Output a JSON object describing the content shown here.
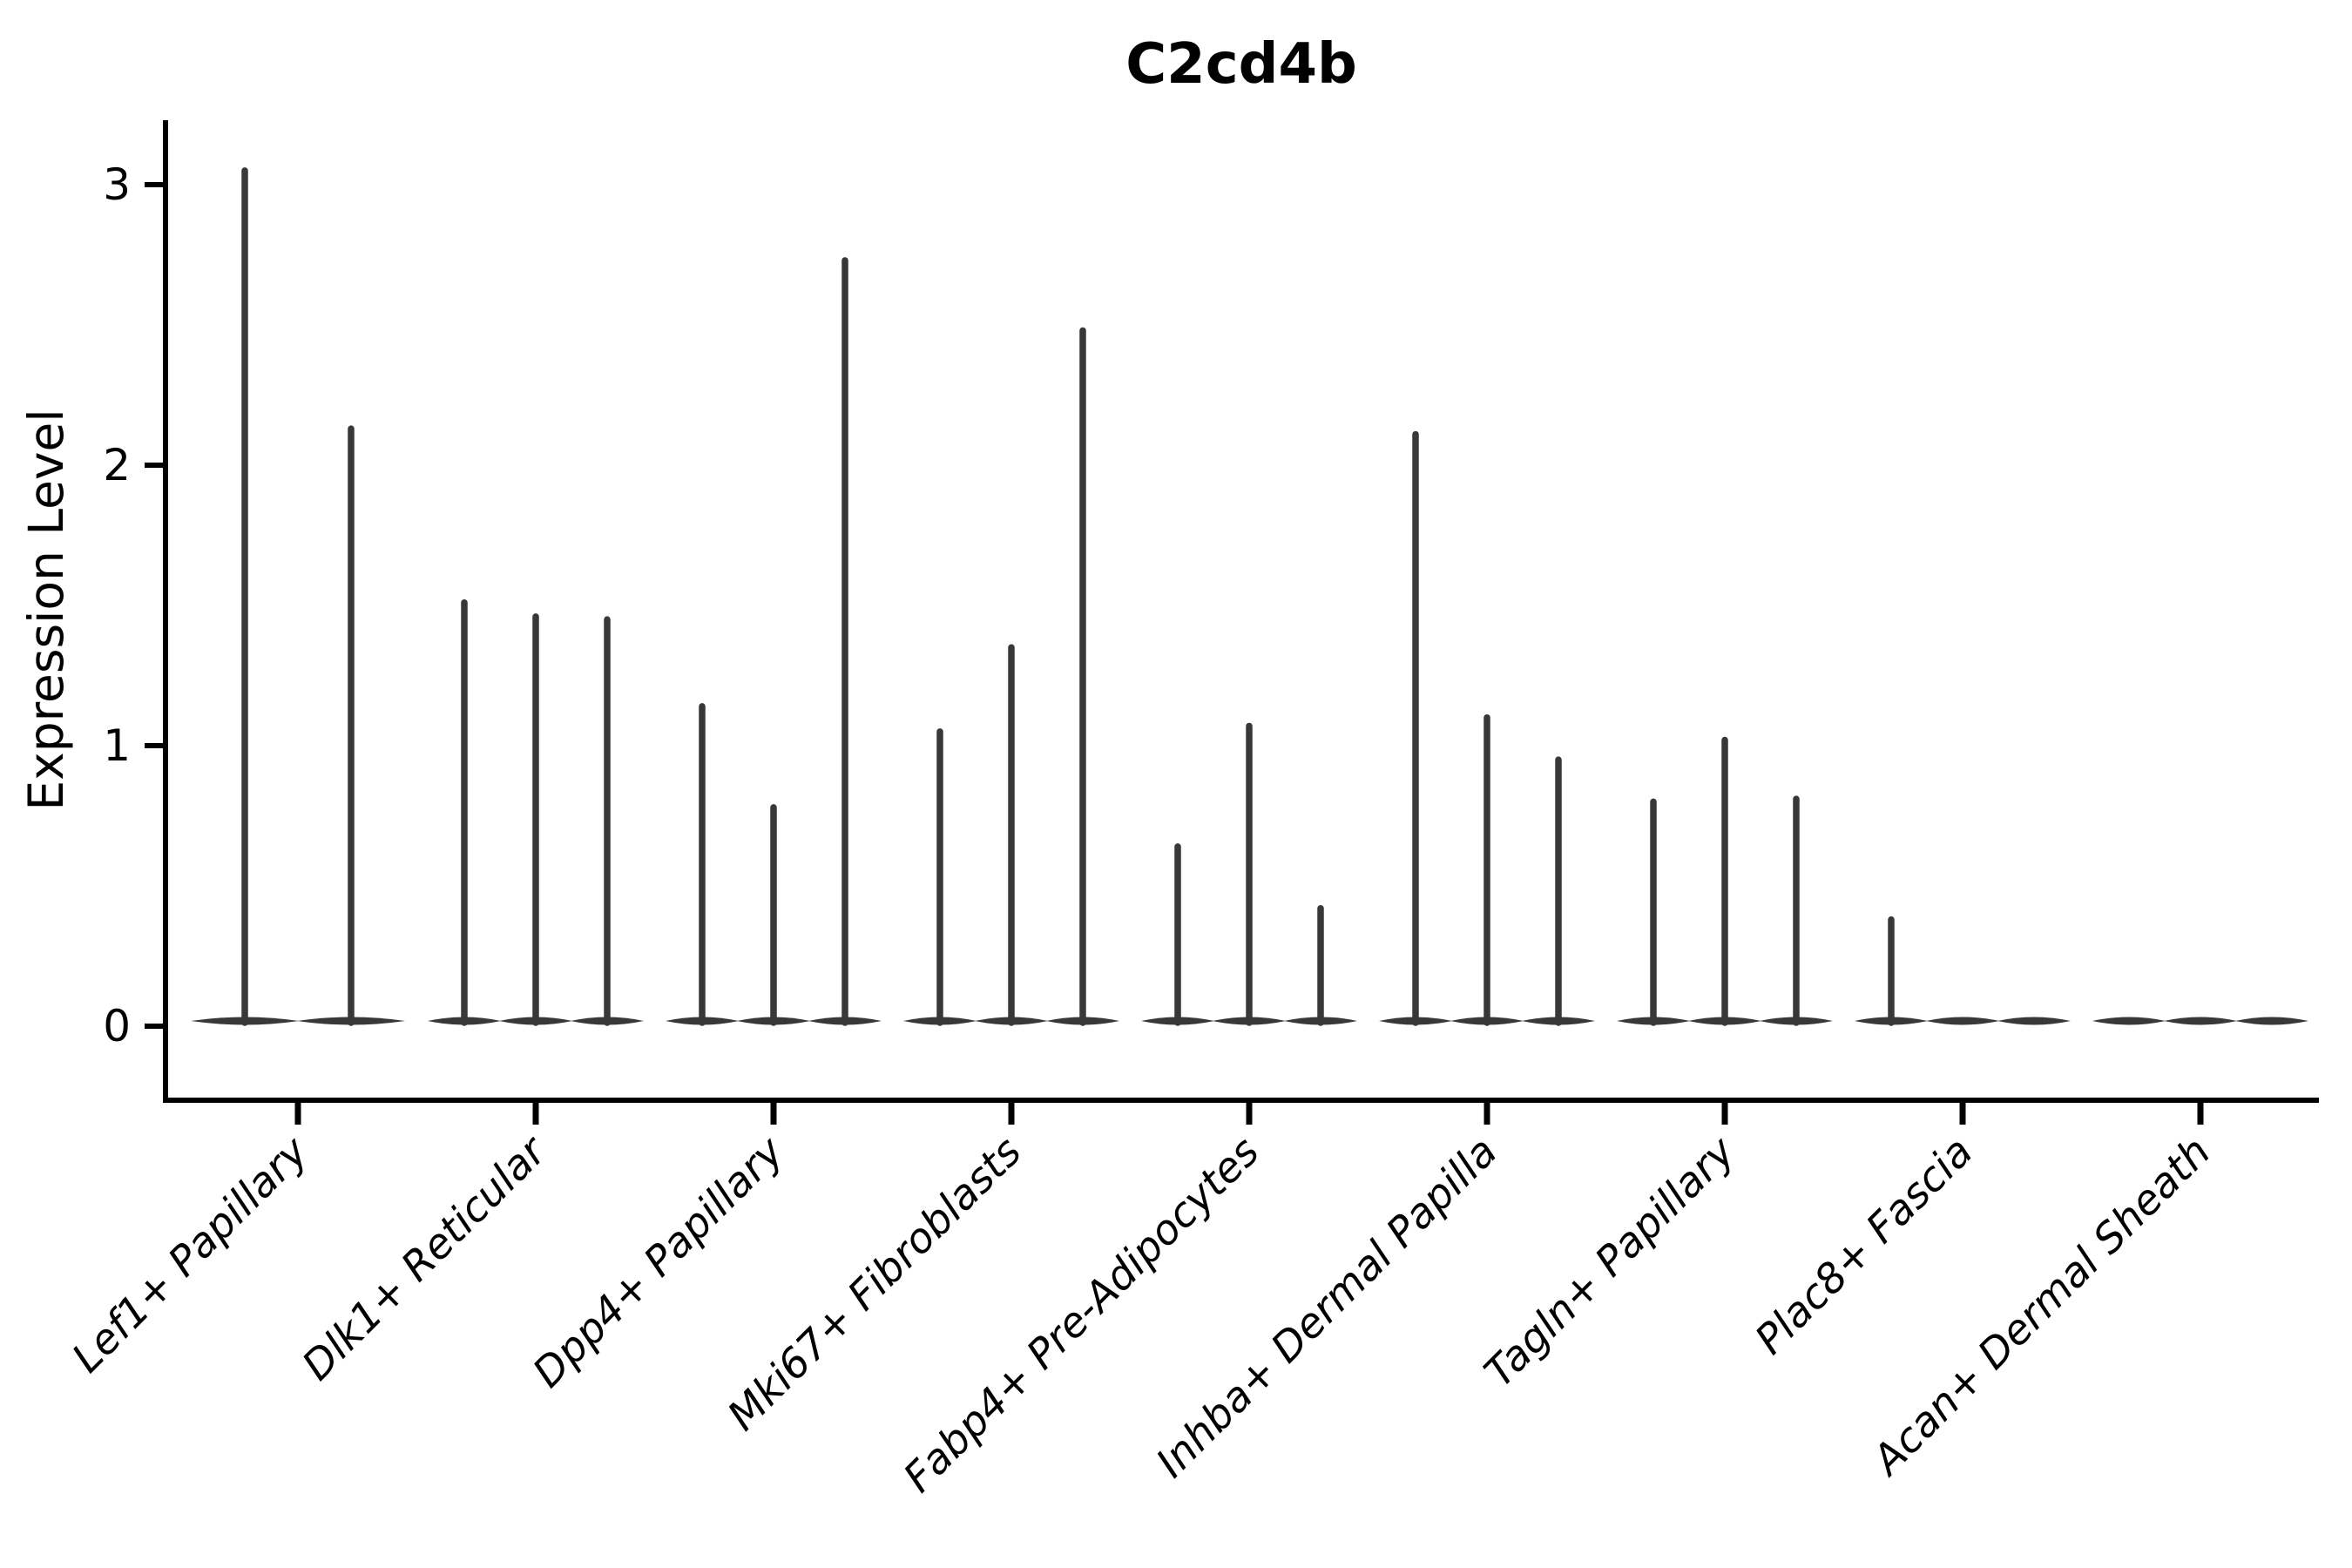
{
  "chart_data": {
    "type": "violin",
    "title": "C2cd4b",
    "xlabel": "",
    "ylabel": "Expression Level",
    "ylim": [
      0,
      3.2
    ],
    "yticks": [
      0,
      1,
      2,
      3
    ],
    "grid": false,
    "legend": "none",
    "violin_fill_color": "#383838",
    "axis_color": "#000000",
    "description": "Violin plot of C2cd4b expression level per fibroblast cell-type cluster; each cluster shows 2-3 narrow violins (spike = maximum expression tail, flat base = bulk of cells at 0). Values below are the tail-tip (max) expression of each violin; 0 means a flat violin with no expression tail.",
    "categories": [
      "Lef1+ Papillary",
      "Dlk1+ Reticular",
      "Dpp4+ Papillary",
      "Mki67+ Fibroblasts",
      "Fabp4+ Pre-Adipocytes",
      "Inhba+ Dermal Papilla",
      "Tagln+ Papillary",
      "Plac8+ Fascia",
      "Acan+ Dermal Sheath"
    ],
    "groups": [
      {
        "label": "Lef1+ Papillary",
        "violin_maxima": [
          3.05,
          2.13
        ]
      },
      {
        "label": "Dlk1+ Reticular",
        "violin_maxima": [
          1.51,
          1.46,
          1.45
        ]
      },
      {
        "label": "Dpp4+ Papillary",
        "violin_maxima": [
          1.14,
          0.78,
          2.73
        ]
      },
      {
        "label": "Mki67+ Fibroblasts",
        "violin_maxima": [
          1.05,
          1.35,
          2.48
        ]
      },
      {
        "label": "Fabp4+ Pre-Adipocytes",
        "violin_maxima": [
          0.64,
          1.07,
          0.42
        ]
      },
      {
        "label": "Inhba+ Dermal Papilla",
        "violin_maxima": [
          2.11,
          1.1,
          0.95
        ]
      },
      {
        "label": "Tagln+ Papillary",
        "violin_maxima": [
          0.8,
          1.02,
          0.81
        ]
      },
      {
        "label": "Plac8+ Fascia",
        "violin_maxima": [
          0.38,
          0,
          0
        ]
      },
      {
        "label": "Acan+ Dermal Sheath",
        "violin_maxima": [
          0,
          0,
          0
        ]
      }
    ]
  }
}
